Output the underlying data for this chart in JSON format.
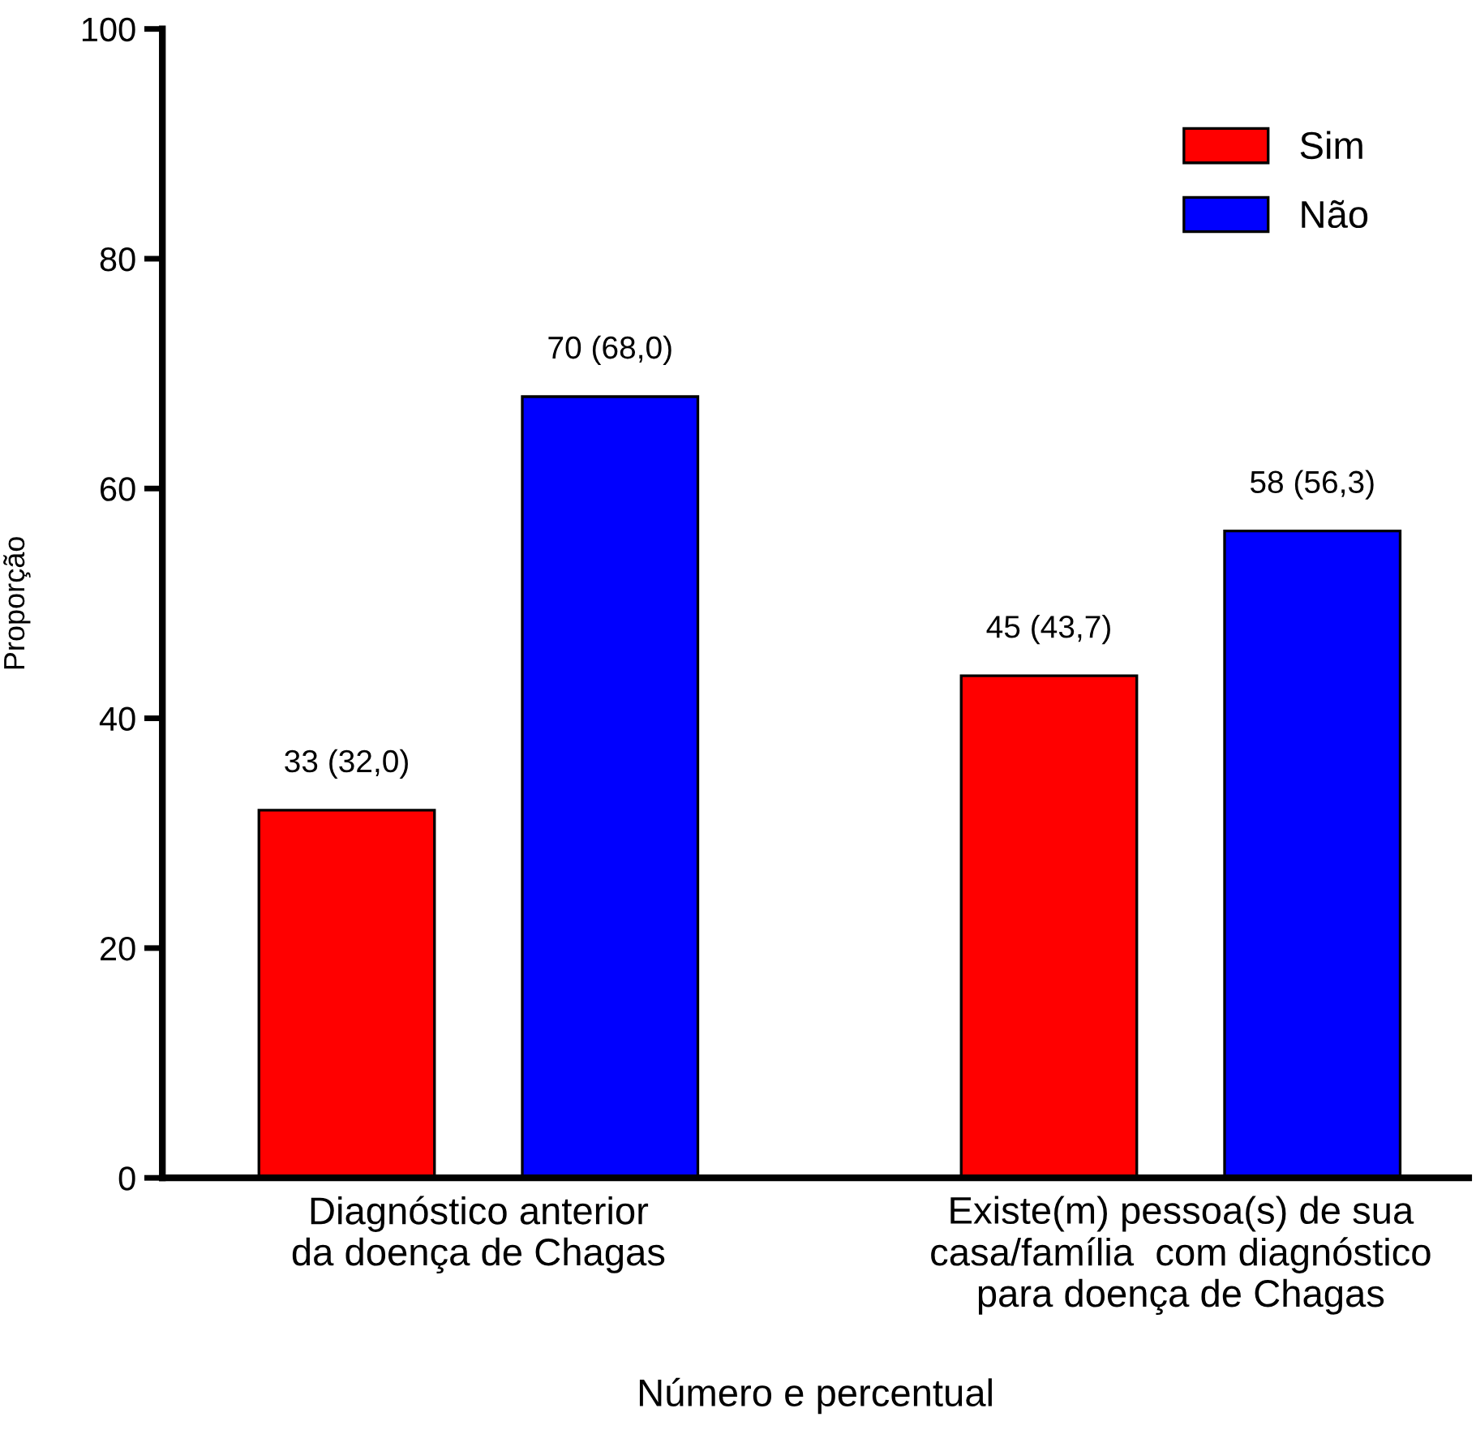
{
  "chart_data": {
    "type": "bar",
    "xlabel": "Número e percentual",
    "ylabel": "Proporção",
    "categories": [
      "Diagnóstico anterior\nda doença de Chagas",
      "Existe(m) pessoa(s) de sua\ncasa/família  com diagnóstico\npara doença de Chagas"
    ],
    "series": [
      {
        "name": "Sim",
        "color": "#ff0000",
        "values": [
          32.0,
          43.7
        ],
        "value_labels": [
          "33 (32,0)",
          "45 (43,7)"
        ]
      },
      {
        "name": "Não",
        "color": "#0000ff",
        "values": [
          68.0,
          56.3
        ],
        "value_labels": [
          "70 (68,0)",
          "58 (56,3)"
        ]
      }
    ],
    "ylim": [
      0,
      100
    ],
    "yticks": [
      0,
      20,
      40,
      60,
      80,
      100
    ],
    "grid": false,
    "legend": "top right"
  }
}
